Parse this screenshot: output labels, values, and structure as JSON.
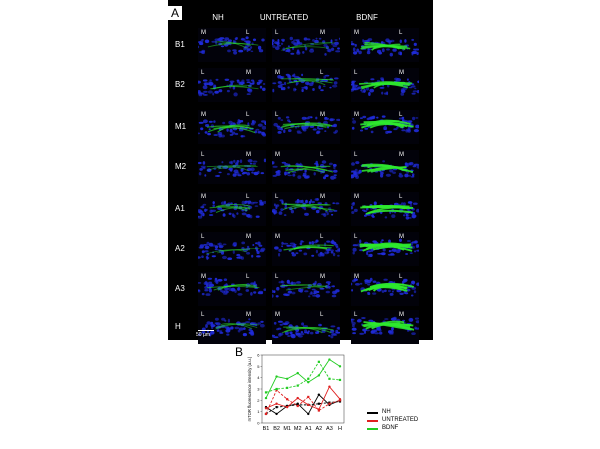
{
  "panel_a": {
    "letter": "A",
    "columns": [
      "NH",
      "UNTREATED",
      "BDNF"
    ],
    "rows": [
      "B1",
      "B2",
      "M1",
      "M2",
      "A1",
      "A2",
      "A3",
      "H"
    ],
    "orientation_labels": [
      [
        [
          "M",
          "L"
        ],
        [
          "L",
          "M"
        ],
        [
          "M",
          "L"
        ]
      ],
      [
        [
          "L",
          "M"
        ],
        [
          "M",
          "L"
        ],
        [
          "L",
          "M"
        ]
      ],
      [
        [
          "M",
          "L"
        ],
        [
          "L",
          "M"
        ],
        [
          "M",
          "L"
        ]
      ],
      [
        [
          "L",
          "M"
        ],
        [
          "M",
          "L"
        ],
        [
          "L",
          "M"
        ]
      ],
      [
        [
          "M",
          "L"
        ],
        [
          "L",
          "M"
        ],
        [
          "M",
          "L"
        ]
      ],
      [
        [
          "L",
          "M"
        ],
        [
          "M",
          "L"
        ],
        [
          "L",
          "M"
        ]
      ],
      [
        [
          "M",
          "L"
        ],
        [
          "L",
          "M"
        ],
        [
          "M",
          "L"
        ]
      ],
      [
        [
          "L",
          "M"
        ],
        [
          "M",
          "L"
        ],
        [
          "L",
          "M"
        ]
      ]
    ],
    "scale_bar_label": "50 µm",
    "colors": {
      "background": "#000000",
      "nuclei": "#1f2bd8",
      "mtor": "#2ee82e"
    },
    "green_intensity": [
      [
        0.25,
        0.15,
        0.75
      ],
      [
        0.2,
        0.3,
        0.8
      ],
      [
        0.45,
        0.4,
        0.9
      ],
      [
        0.2,
        0.4,
        0.85
      ],
      [
        0.35,
        0.35,
        0.9
      ],
      [
        0.15,
        0.45,
        0.95
      ],
      [
        0.3,
        0.25,
        0.95
      ],
      [
        0.25,
        0.35,
        0.9
      ]
    ]
  },
  "panel_b": {
    "letter": "B"
  },
  "chart_data": {
    "type": "line",
    "categories": [
      "B1",
      "B2",
      "M1",
      "M2",
      "A1",
      "A2",
      "A3",
      "H"
    ],
    "ylabel": "mTOR fluorescence intensity (a.u.)",
    "xlabel": "",
    "ylim": [
      0,
      6
    ],
    "yticks": [
      0,
      1,
      2,
      3,
      4,
      5,
      6
    ],
    "grid": false,
    "legend_placement": "right",
    "legend": [
      {
        "label": "NH",
        "color": "#000000"
      },
      {
        "label": "UNTREATED",
        "color": "#e02020"
      },
      {
        "label": "BDNF",
        "color": "#22cc22"
      }
    ],
    "series": [
      {
        "name": "NH",
        "group": 0,
        "dashed": false,
        "marker": "circle",
        "values": [
          1.4,
          0.8,
          1.5,
          1.7,
          0.8,
          2.5,
          1.6,
          2.0
        ]
      },
      {
        "name": "NH",
        "group": 0,
        "dashed": true,
        "marker": "square",
        "values": [
          0.8,
          1.4,
          1.5,
          1.6,
          1.6,
          1.7,
          1.8,
          1.9
        ]
      },
      {
        "name": "UNTREATED",
        "group": 1,
        "dashed": false,
        "marker": "circle",
        "values": [
          1.3,
          1.7,
          1.4,
          2.2,
          1.6,
          1.2,
          3.2,
          2.1
        ]
      },
      {
        "name": "UNTREATED",
        "group": 1,
        "dashed": true,
        "marker": "square",
        "values": [
          0.8,
          2.9,
          2.1,
          1.5,
          2.3,
          1.1,
          1.7,
          2.0
        ]
      },
      {
        "name": "BDNF",
        "group": 2,
        "dashed": false,
        "marker": "circle",
        "values": [
          2.2,
          4.1,
          3.9,
          4.4,
          3.6,
          4.2,
          5.6,
          5.0
        ]
      },
      {
        "name": "BDNF",
        "group": 2,
        "dashed": true,
        "marker": "square",
        "values": [
          2.7,
          3.0,
          3.1,
          3.3,
          3.9,
          5.4,
          3.9,
          3.8
        ]
      }
    ]
  }
}
